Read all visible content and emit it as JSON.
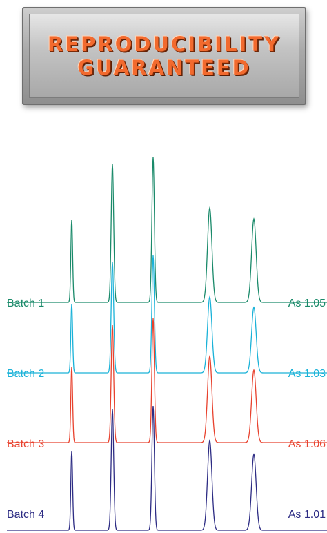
{
  "badge": {
    "line1": "REPRODUCIBILITY",
    "line2": "GUARANTEED"
  },
  "chart_data": {
    "type": "line",
    "title": "",
    "xlabel": "",
    "ylabel": "",
    "peaks": [
      {
        "retention": 1,
        "heights": [
          120,
          100,
          110,
          115
        ]
      },
      {
        "retention": 2,
        "heights": [
          200,
          160,
          170,
          175
        ]
      },
      {
        "retention": 3,
        "heights": [
          210,
          170,
          180,
          180
        ]
      },
      {
        "retention": 4,
        "heights": [
          137,
          110,
          125,
          130
        ]
      },
      {
        "retention": 5,
        "heights": [
          121,
          95,
          105,
          110
        ]
      }
    ],
    "series": [
      {
        "name": "Batch 1",
        "asymmetry": "As 1.05",
        "color": "#1a8a6a"
      },
      {
        "name": "Batch 2",
        "asymmetry": "As 1.03",
        "color": "#1ab2d8"
      },
      {
        "name": "Batch 3",
        "asymmetry": "As 1.06",
        "color": "#e8422e"
      },
      {
        "name": "Batch 4",
        "asymmetry": "As 1.01",
        "color": "#2d2c84"
      }
    ]
  }
}
